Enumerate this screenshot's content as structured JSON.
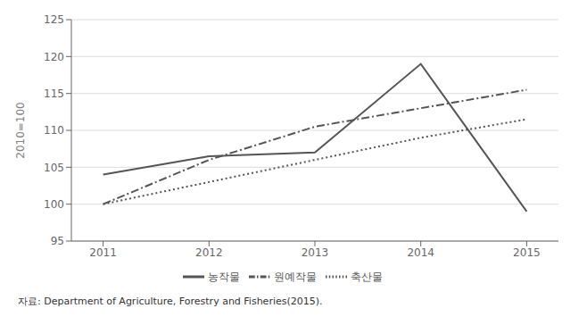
{
  "chart_data": {
    "type": "line",
    "x": [
      2011,
      2012,
      2013,
      2014,
      2015
    ],
    "series": [
      {
        "name": "농작물",
        "color": "#555555",
        "line_style": "solid",
        "values": [
          104.0,
          106.5,
          107.0,
          119.0,
          99.0
        ]
      },
      {
        "name": "원예작물",
        "color": "#555555",
        "line_style": "dashdot",
        "values": [
          100.0,
          106.0,
          110.5,
          113.0,
          115.5
        ]
      },
      {
        "name": "축산물",
        "color": "#555555",
        "line_style": "dotted",
        "values": [
          100.0,
          103.0,
          106.0,
          109.0,
          111.5
        ]
      }
    ],
    "xlim": [
      2010.7,
      2015.3
    ],
    "xticks": [
      2011,
      2012,
      2013,
      2014,
      2015
    ],
    "ylim": [
      95,
      125
    ],
    "yticks": [
      95,
      100,
      105,
      110,
      115,
      120,
      125
    ],
    "ylabel": "2010=100",
    "grid": "y",
    "legend": "bottom",
    "annotations": [
      "자료: Department of Agriculture, Forestry and Fisheries(2015)."
    ]
  }
}
